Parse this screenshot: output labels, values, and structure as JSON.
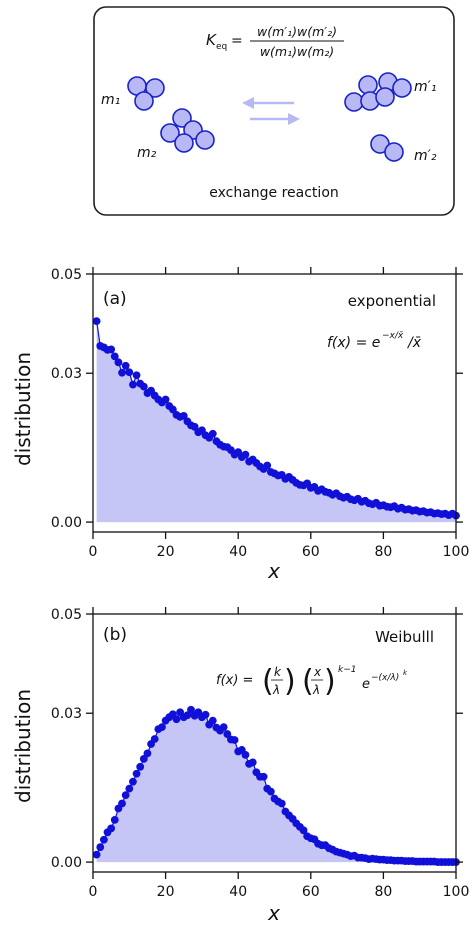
{
  "diagram": {
    "caption": "exchange reaction",
    "equation_lhs": "K",
    "equation_lhs_sub": "eq",
    "equation_num": "w(m′₁)w(m′₂)",
    "equation_den": "w(m₁)w(m₂)",
    "labels": {
      "m1": "m₁",
      "m2": "m₂",
      "m1p": "m′₁",
      "m2p": "m′₂"
    },
    "colors": {
      "cluster_fill": "#b8b8f4",
      "cluster_stroke": "#1a22c8",
      "arrow": "#b9b9f2"
    }
  },
  "colors": {
    "fill": "#c6c6f6",
    "point": "#1010d8",
    "line": "#1010d8"
  },
  "chart_data": [
    {
      "type": "scatter",
      "panel": "(a)",
      "name": "exponential",
      "formula": "f(x) = e^(−x/x̄)/x̄",
      "xlabel": "x",
      "ylabel": "distribution",
      "xlim": [
        0,
        100
      ],
      "ylim": [
        -0.002,
        0.05
      ],
      "xticks": [
        0,
        20,
        40,
        60,
        80,
        100
      ],
      "yticks": [
        0.0,
        0.03,
        0.05
      ],
      "ytick_labels": [
        "0.00",
        "0.03",
        "0.05"
      ],
      "series": [
        {
          "x": [
            1,
            2,
            3,
            4,
            5,
            6,
            7,
            8,
            9,
            10,
            11,
            12,
            13,
            14,
            15,
            16,
            17,
            18,
            19,
            20,
            21,
            22,
            23,
            24,
            25,
            26,
            27,
            28,
            29,
            30,
            31,
            32,
            33,
            34,
            35,
            36,
            37,
            38,
            39,
            40,
            41,
            42,
            43,
            44,
            45,
            46,
            47,
            48,
            49,
            50,
            51,
            52,
            53,
            54,
            55,
            56,
            57,
            58,
            59,
            60,
            61,
            62,
            63,
            64,
            65,
            66,
            67,
            68,
            69,
            70,
            71,
            72,
            73,
            74,
            75,
            76,
            77,
            78,
            79,
            80,
            81,
            82,
            83,
            84,
            85,
            86,
            87,
            88,
            89,
            90,
            91,
            92,
            93,
            94,
            95,
            96,
            97,
            98,
            99,
            100
          ],
          "y": [
            0.0405,
            0.0355,
            0.0352,
            0.0347,
            0.0348,
            0.0334,
            0.0322,
            0.0301,
            0.0315,
            0.0302,
            0.0277,
            0.0296,
            0.0279,
            0.0273,
            0.026,
            0.0265,
            0.0255,
            0.0247,
            0.0241,
            0.0247,
            0.0234,
            0.0227,
            0.0216,
            0.0212,
            0.0214,
            0.0203,
            0.0195,
            0.0192,
            0.0181,
            0.0185,
            0.0175,
            0.017,
            0.0178,
            0.0163,
            0.0156,
            0.0152,
            0.0151,
            0.0145,
            0.0136,
            0.0141,
            0.0131,
            0.0136,
            0.0122,
            0.0126,
            0.0119,
            0.0112,
            0.0107,
            0.0114,
            0.0101,
            0.0098,
            0.0094,
            0.0095,
            0.0087,
            0.0091,
            0.0085,
            0.0079,
            0.0075,
            0.0074,
            0.0078,
            0.0069,
            0.0071,
            0.0063,
            0.0066,
            0.0061,
            0.0059,
            0.0055,
            0.0058,
            0.0052,
            0.0049,
            0.0051,
            0.0046,
            0.0044,
            0.0047,
            0.0041,
            0.0043,
            0.0038,
            0.0036,
            0.0039,
            0.0033,
            0.0034,
            0.0031,
            0.003,
            0.0032,
            0.0027,
            0.0029,
            0.0025,
            0.0026,
            0.0023,
            0.0024,
            0.0021,
            0.0022,
            0.0019,
            0.002,
            0.0017,
            0.0018,
            0.0016,
            0.0017,
            0.0014,
            0.0017,
            0.0013
          ]
        }
      ]
    },
    {
      "type": "scatter",
      "panel": "(b)",
      "name": "Weibulll",
      "formula": "f(x) = (k/λ)(x/λ)^(k−1) e^(−(x/λ)^k)",
      "xlabel": "x",
      "ylabel": "distribution",
      "xlim": [
        0,
        100
      ],
      "ylim": [
        -0.002,
        0.05
      ],
      "xticks": [
        0,
        20,
        40,
        60,
        80,
        100
      ],
      "yticks": [
        0.0,
        0.03,
        0.05
      ],
      "ytick_labels": [
        "0.00",
        "0.03",
        "0.05"
      ],
      "series": [
        {
          "x": [
            1,
            2,
            3,
            4,
            5,
            6,
            7,
            8,
            9,
            10,
            11,
            12,
            13,
            14,
            15,
            16,
            17,
            18,
            19,
            20,
            21,
            22,
            23,
            24,
            25,
            26,
            27,
            28,
            29,
            30,
            31,
            32,
            33,
            34,
            35,
            36,
            37,
            38,
            39,
            40,
            41,
            42,
            43,
            44,
            45,
            46,
            47,
            48,
            49,
            50,
            51,
            52,
            53,
            54,
            55,
            56,
            57,
            58,
            59,
            60,
            61,
            62,
            63,
            64,
            65,
            66,
            67,
            68,
            69,
            70,
            71,
            72,
            73,
            74,
            75,
            76,
            77,
            78,
            79,
            80,
            81,
            82,
            83,
            84,
            85,
            86,
            87,
            88,
            89,
            90,
            91,
            92,
            93,
            94,
            95,
            96,
            97,
            98,
            99,
            100
          ],
          "y": [
            0.0015,
            0.003,
            0.0045,
            0.006,
            0.0068,
            0.0085,
            0.0108,
            0.0118,
            0.0135,
            0.0148,
            0.0162,
            0.0178,
            0.0192,
            0.0208,
            0.0219,
            0.0238,
            0.0248,
            0.0268,
            0.0272,
            0.0285,
            0.0292,
            0.0298,
            0.0288,
            0.0302,
            0.0292,
            0.0296,
            0.0307,
            0.0295,
            0.0302,
            0.0292,
            0.0297,
            0.0277,
            0.0285,
            0.0271,
            0.0265,
            0.0272,
            0.0258,
            0.0247,
            0.0246,
            0.0223,
            0.0226,
            0.0216,
            0.0198,
            0.0201,
            0.0181,
            0.0172,
            0.0172,
            0.0148,
            0.0142,
            0.0128,
            0.0122,
            0.0118,
            0.0102,
            0.0094,
            0.0087,
            0.0078,
            0.0071,
            0.0064,
            0.0052,
            0.0048,
            0.0046,
            0.0037,
            0.0034,
            0.0034,
            0.0028,
            0.0025,
            0.0021,
            0.0019,
            0.0017,
            0.0015,
            0.0012,
            0.0013,
            0.0009,
            0.0009,
            0.0008,
            0.0006,
            0.0007,
            0.0006,
            0.0005,
            0.0005,
            0.0004,
            0.0004,
            0.0003,
            0.0003,
            0.0003,
            0.0002,
            0.0002,
            0.0002,
            0.0001,
            0.0001,
            0.0001,
            0.0001,
            0.0001,
            0.0001,
            0.0,
            0.0,
            0.0,
            0.0,
            0.0,
            0.0
          ]
        }
      ]
    }
  ]
}
